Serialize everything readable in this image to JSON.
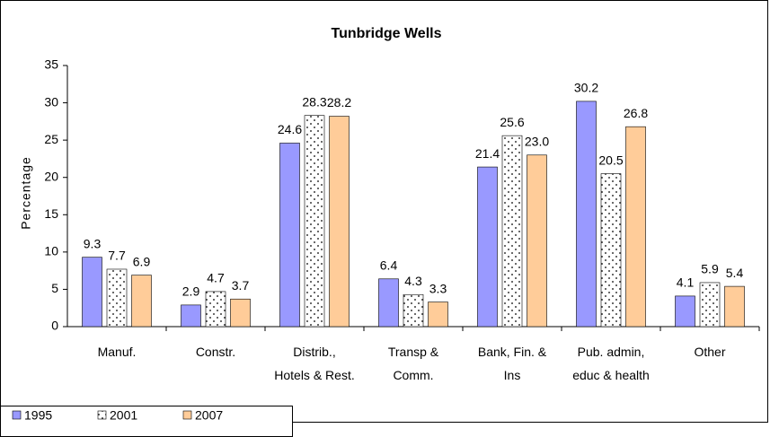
{
  "chart_data": {
    "type": "bar",
    "title": "Tunbridge Wells",
    "y_label": "Percentage",
    "categories": [
      "Manuf.",
      "Constr.",
      "Distrib.,\nHotels & Rest.",
      "Transp &\nComm.",
      "Bank, Fin. &\nIns",
      "Pub. admin,\neduc & health",
      "Other"
    ],
    "series": [
      {
        "name": "1995",
        "color": "#9999ff",
        "values": [
          9.3,
          2.9,
          24.6,
          6.4,
          21.4,
          30.2,
          4.1
        ],
        "value_labels": [
          "9.3",
          "2.9",
          "24.6",
          "6.4",
          "21.4",
          "30.2",
          "4.1"
        ]
      },
      {
        "name": "2001",
        "color": "#ffffff",
        "pattern": "dots",
        "values": [
          7.7,
          4.7,
          28.3,
          4.3,
          25.6,
          20.5,
          5.9
        ],
        "value_labels": [
          "7.7",
          "4.7",
          "28.3",
          "4.3",
          "25.6",
          "20.5",
          "5.9"
        ]
      },
      {
        "name": "2007",
        "color": "#ffcc99",
        "values": [
          6.9,
          3.7,
          28.2,
          3.3,
          23.0,
          26.8,
          5.4
        ],
        "value_labels": [
          "6.9",
          "3.7",
          "28.2",
          "3.3",
          "23.0",
          "26.8",
          "5.4"
        ]
      }
    ],
    "ylim": [
      0,
      35
    ],
    "yticks": [
      0,
      5,
      10,
      15,
      20,
      25,
      30,
      35
    ],
    "grid": false,
    "legend": "bottom-left"
  }
}
